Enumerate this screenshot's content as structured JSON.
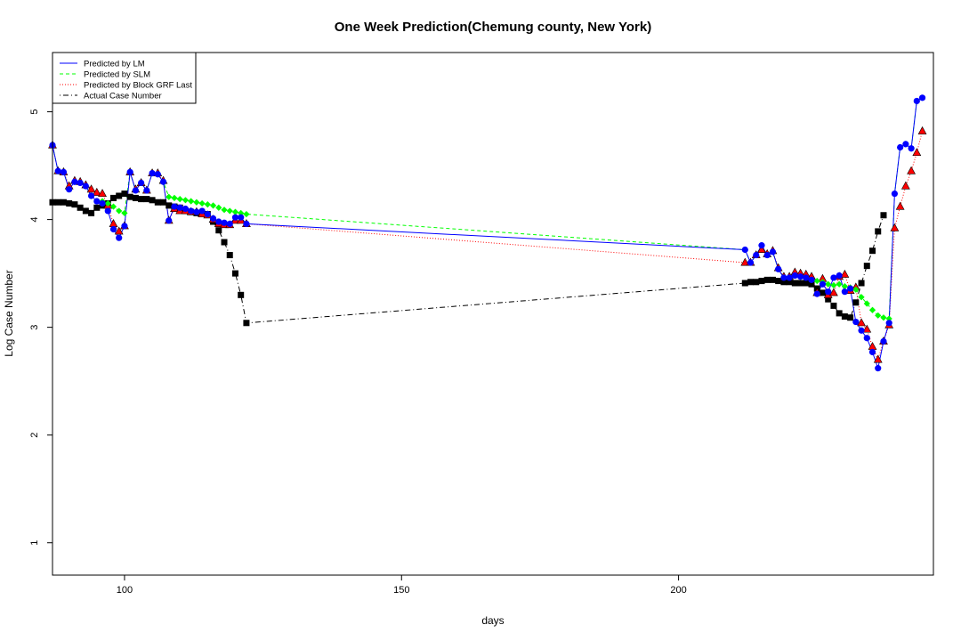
{
  "chart_data": {
    "type": "line",
    "title": "One Week Prediction(Chemung county, New York)",
    "xlabel": "days",
    "ylabel": "Log Case Number",
    "xlim": [
      87,
      246
    ],
    "ylim": [
      0.7,
      5.55
    ],
    "x_ticks": [
      100,
      150,
      200
    ],
    "y_ticks": [
      1,
      2,
      3,
      4,
      5
    ],
    "legend_position": "top-left",
    "grid": false,
    "series": [
      {
        "name": "Predicted by LM",
        "color": "#0000ff",
        "line": "solid",
        "marker": "circle-blue",
        "points": [
          [
            87,
            4.69
          ],
          [
            88,
            4.45
          ],
          [
            89,
            4.44
          ],
          [
            90,
            4.28
          ],
          [
            91,
            4.35
          ],
          [
            92,
            4.34
          ],
          [
            93,
            4.31
          ],
          [
            94,
            4.22
          ],
          [
            95,
            4.17
          ],
          [
            96,
            4.15
          ],
          [
            97,
            4.08
          ],
          [
            98,
            3.91
          ],
          [
            99,
            3.83
          ],
          [
            100,
            3.94
          ],
          [
            101,
            4.44
          ],
          [
            102,
            4.27
          ],
          [
            103,
            4.34
          ],
          [
            104,
            4.27
          ],
          [
            105,
            4.43
          ],
          [
            106,
            4.42
          ],
          [
            107,
            4.35
          ],
          [
            108,
            3.99
          ],
          [
            109,
            4.12
          ],
          [
            110,
            4.11
          ],
          [
            111,
            4.1
          ],
          [
            112,
            4.08
          ],
          [
            113,
            4.07
          ],
          [
            114,
            4.08
          ],
          [
            115,
            4.05
          ],
          [
            116,
            4.01
          ],
          [
            117,
            3.98
          ],
          [
            118,
            3.97
          ],
          [
            119,
            3.96
          ],
          [
            120,
            4.02
          ],
          [
            121,
            4.02
          ],
          [
            122,
            3.96
          ],
          [
            212,
            3.72
          ],
          [
            213,
            3.6
          ],
          [
            214,
            3.67
          ],
          [
            215,
            3.76
          ],
          [
            216,
            3.67
          ],
          [
            217,
            3.7
          ],
          [
            218,
            3.54
          ],
          [
            219,
            3.46
          ],
          [
            220,
            3.46
          ],
          [
            221,
            3.48
          ],
          [
            222,
            3.47
          ],
          [
            223,
            3.46
          ],
          [
            224,
            3.44
          ],
          [
            225,
            3.31
          ],
          [
            226,
            3.4
          ],
          [
            227,
            3.33
          ],
          [
            228,
            3.46
          ],
          [
            229,
            3.48
          ],
          [
            230,
            3.33
          ],
          [
            231,
            3.36
          ],
          [
            232,
            3.05
          ],
          [
            233,
            2.97
          ],
          [
            234,
            2.9
          ],
          [
            235,
            2.77
          ],
          [
            236,
            2.62
          ],
          [
            237,
            2.87
          ],
          [
            238,
            3.04
          ],
          [
            239,
            4.24
          ],
          [
            240,
            4.67
          ],
          [
            241,
            4.7
          ],
          [
            242,
            4.66
          ],
          [
            243,
            5.1
          ],
          [
            244,
            5.13
          ]
        ]
      },
      {
        "name": "Predicted by SLM",
        "color": "#00ff00",
        "line": "dashed",
        "marker": "diamond-green",
        "points": [
          [
            87,
            4.69
          ],
          [
            88,
            4.45
          ],
          [
            89,
            4.44
          ],
          [
            90,
            4.28
          ],
          [
            91,
            4.35
          ],
          [
            92,
            4.34
          ],
          [
            93,
            4.31
          ],
          [
            94,
            4.22
          ],
          [
            95,
            4.17
          ],
          [
            96,
            4.17
          ],
          [
            97,
            4.15
          ],
          [
            98,
            4.12
          ],
          [
            99,
            4.08
          ],
          [
            100,
            4.06
          ],
          [
            101,
            4.44
          ],
          [
            102,
            4.27
          ],
          [
            103,
            4.34
          ],
          [
            104,
            4.27
          ],
          [
            105,
            4.43
          ],
          [
            106,
            4.42
          ],
          [
            107,
            4.35
          ],
          [
            108,
            4.21
          ],
          [
            109,
            4.2
          ],
          [
            110,
            4.19
          ],
          [
            111,
            4.18
          ],
          [
            112,
            4.17
          ],
          [
            113,
            4.16
          ],
          [
            114,
            4.15
          ],
          [
            115,
            4.14
          ],
          [
            116,
            4.13
          ],
          [
            117,
            4.11
          ],
          [
            118,
            4.09
          ],
          [
            119,
            4.08
          ],
          [
            120,
            4.07
          ],
          [
            121,
            4.06
          ],
          [
            122,
            4.05
          ],
          [
            212,
            3.72
          ],
          [
            213,
            3.6
          ],
          [
            214,
            3.67
          ],
          [
            215,
            3.76
          ],
          [
            216,
            3.67
          ],
          [
            217,
            3.7
          ],
          [
            218,
            3.54
          ],
          [
            219,
            3.46
          ],
          [
            220,
            3.46
          ],
          [
            221,
            3.48
          ],
          [
            222,
            3.47
          ],
          [
            223,
            3.46
          ],
          [
            224,
            3.44
          ],
          [
            225,
            3.43
          ],
          [
            226,
            3.42
          ],
          [
            227,
            3.4
          ],
          [
            228,
            3.39
          ],
          [
            229,
            3.4
          ],
          [
            230,
            3.38
          ],
          [
            231,
            3.37
          ],
          [
            232,
            3.35
          ],
          [
            233,
            3.28
          ],
          [
            234,
            3.22
          ],
          [
            235,
            3.16
          ],
          [
            236,
            3.11
          ],
          [
            237,
            3.09
          ],
          [
            238,
            3.08
          ],
          [
            239,
            4.24
          ],
          [
            240,
            4.67
          ],
          [
            241,
            4.7
          ],
          [
            242,
            4.66
          ],
          [
            243,
            5.1
          ],
          [
            244,
            5.13
          ]
        ]
      },
      {
        "name": "Predicted by Block GRF Last",
        "color": "#ff0000",
        "line": "dotted",
        "marker": "triangle-red",
        "points": [
          [
            87,
            4.69
          ],
          [
            88,
            4.45
          ],
          [
            89,
            4.44
          ],
          [
            90,
            4.31
          ],
          [
            91,
            4.36
          ],
          [
            92,
            4.35
          ],
          [
            93,
            4.32
          ],
          [
            94,
            4.28
          ],
          [
            95,
            4.25
          ],
          [
            96,
            4.24
          ],
          [
            97,
            4.13
          ],
          [
            98,
            3.96
          ],
          [
            99,
            3.89
          ],
          [
            100,
            3.94
          ],
          [
            101,
            4.44
          ],
          [
            102,
            4.28
          ],
          [
            103,
            4.34
          ],
          [
            104,
            4.27
          ],
          [
            105,
            4.43
          ],
          [
            106,
            4.43
          ],
          [
            107,
            4.36
          ],
          [
            108,
            3.99
          ],
          [
            109,
            4.1
          ],
          [
            110,
            4.08
          ],
          [
            111,
            4.08
          ],
          [
            112,
            4.07
          ],
          [
            113,
            4.07
          ],
          [
            114,
            4.05
          ],
          [
            115,
            4.04
          ],
          [
            116,
            4.0
          ],
          [
            117,
            3.96
          ],
          [
            118,
            3.95
          ],
          [
            119,
            3.95
          ],
          [
            120,
            3.99
          ],
          [
            121,
            3.99
          ],
          [
            122,
            3.96
          ],
          [
            212,
            3.6
          ],
          [
            213,
            3.6
          ],
          [
            214,
            3.67
          ],
          [
            215,
            3.72
          ],
          [
            216,
            3.68
          ],
          [
            217,
            3.71
          ],
          [
            218,
            3.55
          ],
          [
            219,
            3.47
          ],
          [
            220,
            3.47
          ],
          [
            221,
            3.51
          ],
          [
            222,
            3.5
          ],
          [
            223,
            3.49
          ],
          [
            224,
            3.47
          ],
          [
            225,
            3.32
          ],
          [
            226,
            3.45
          ],
          [
            227,
            3.3
          ],
          [
            228,
            3.32
          ],
          [
            229,
            3.47
          ],
          [
            230,
            3.49
          ],
          [
            231,
            3.34
          ],
          [
            232,
            3.37
          ],
          [
            233,
            3.04
          ],
          [
            234,
            2.98
          ],
          [
            235,
            2.82
          ],
          [
            236,
            2.7
          ],
          [
            237,
            2.87
          ],
          [
            238,
            3.02
          ],
          [
            239,
            3.92
          ],
          [
            240,
            4.12
          ],
          [
            241,
            4.31
          ],
          [
            242,
            4.45
          ],
          [
            243,
            4.62
          ],
          [
            244,
            4.82
          ]
        ]
      },
      {
        "name": "Actual Case Number",
        "color": "#000000",
        "line": "dotdash",
        "marker": "square-black",
        "points": [
          [
            87,
            4.16
          ],
          [
            88,
            4.16
          ],
          [
            89,
            4.16
          ],
          [
            90,
            4.15
          ],
          [
            91,
            4.14
          ],
          [
            92,
            4.11
          ],
          [
            93,
            4.08
          ],
          [
            94,
            4.06
          ],
          [
            95,
            4.11
          ],
          [
            96,
            4.13
          ],
          [
            97,
            4.15
          ],
          [
            98,
            4.2
          ],
          [
            99,
            4.22
          ],
          [
            100,
            4.24
          ],
          [
            101,
            4.21
          ],
          [
            102,
            4.2
          ],
          [
            103,
            4.19
          ],
          [
            104,
            4.19
          ],
          [
            105,
            4.18
          ],
          [
            106,
            4.16
          ],
          [
            107,
            4.16
          ],
          [
            108,
            4.13
          ],
          [
            109,
            4.12
          ],
          [
            110,
            4.11
          ],
          [
            111,
            4.08
          ],
          [
            112,
            4.07
          ],
          [
            113,
            4.06
          ],
          [
            114,
            4.05
          ],
          [
            115,
            4.05
          ],
          [
            116,
            3.98
          ],
          [
            117,
            3.9
          ],
          [
            118,
            3.79
          ],
          [
            119,
            3.67
          ],
          [
            120,
            3.5
          ],
          [
            121,
            3.3
          ],
          [
            122,
            3.04
          ],
          [
            212,
            3.41
          ],
          [
            213,
            3.42
          ],
          [
            214,
            3.42
          ],
          [
            215,
            3.43
          ],
          [
            216,
            3.44
          ],
          [
            217,
            3.44
          ],
          [
            218,
            3.43
          ],
          [
            219,
            3.42
          ],
          [
            220,
            3.42
          ],
          [
            221,
            3.41
          ],
          [
            222,
            3.41
          ],
          [
            223,
            3.41
          ],
          [
            224,
            3.4
          ],
          [
            225,
            3.36
          ],
          [
            226,
            3.32
          ],
          [
            227,
            3.26
          ],
          [
            228,
            3.2
          ],
          [
            229,
            3.13
          ],
          [
            230,
            3.1
          ],
          [
            231,
            3.09
          ],
          [
            232,
            3.23
          ],
          [
            233,
            3.41
          ],
          [
            234,
            3.57
          ],
          [
            235,
            3.71
          ],
          [
            236,
            3.89
          ],
          [
            237,
            4.04
          ]
        ]
      }
    ]
  }
}
